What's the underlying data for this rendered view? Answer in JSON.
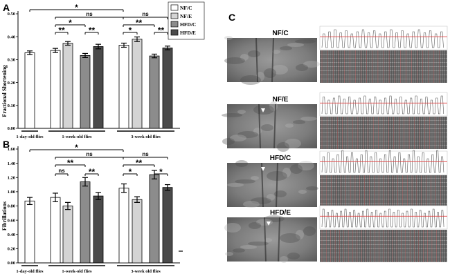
{
  "panels": {
    "a_letter": "A",
    "b_letter": "B",
    "c_letter": "C"
  },
  "legend": {
    "items": [
      {
        "label": "NF/C",
        "color": "#ffffff"
      },
      {
        "label": "NF/E",
        "color": "#d4d4d4"
      },
      {
        "label": "HFD/C",
        "color": "#8c8c8c"
      },
      {
        "label": "HFD/E",
        "color": "#4a4a4a"
      }
    ]
  },
  "groups": [
    "1-day-old flies",
    "1-week-old flies",
    "3-week old flies"
  ],
  "chart_data": [
    {
      "type": "bar",
      "panel": "A",
      "ylabel": "Fractional Shortening",
      "ylim": [
        0,
        0.5
      ],
      "yticks": [
        "0.00",
        "0.10",
        "0.20",
        "0.30",
        "0.40",
        "0.50"
      ],
      "categories": [
        "1-day-old flies",
        "1-week-old flies",
        "3-week old flies"
      ],
      "series": [
        {
          "name": "NF/C",
          "values": [
            0.33,
            0.34,
            0.363
          ],
          "errors": [
            0.008,
            0.009,
            0.009
          ]
        },
        {
          "name": "NF/E",
          "values": [
            null,
            0.371,
            0.389
          ],
          "errors": [
            null,
            0.008,
            0.01
          ]
        },
        {
          "name": "HFD/C",
          "values": [
            null,
            0.318,
            0.316
          ],
          "errors": [
            null,
            0.009,
            0.008
          ]
        },
        {
          "name": "HFD/E",
          "values": [
            null,
            0.357,
            0.351
          ],
          "errors": [
            null,
            0.01,
            0.008
          ]
        }
      ],
      "annotations": [
        "*",
        "ns",
        "**",
        "*",
        "**",
        "ns",
        "*",
        "**",
        "**"
      ]
    },
    {
      "type": "bar",
      "panel": "B",
      "ylabel": "Fibrillations",
      "ylim": [
        0,
        1.6
      ],
      "yticks": [
        "0.00",
        "0.20",
        "0.40",
        "0.60",
        "0.80",
        "1.00",
        "1.20",
        "1.40",
        "1.60"
      ],
      "categories": [
        "1-day-old flies",
        "1-week-old flies",
        "3-week old flies"
      ],
      "series": [
        {
          "name": "NF/C",
          "values": [
            0.87,
            0.92,
            1.05
          ],
          "errors": [
            0.05,
            0.06,
            0.06
          ]
        },
        {
          "name": "NF/E",
          "values": [
            null,
            0.8,
            0.89
          ],
          "errors": [
            null,
            0.05,
            0.04
          ]
        },
        {
          "name": "HFD/C",
          "values": [
            null,
            1.14,
            1.24
          ],
          "errors": [
            null,
            0.06,
            0.06
          ]
        },
        {
          "name": "HFD/E",
          "values": [
            null,
            0.94,
            1.06
          ],
          "errors": [
            null,
            0.05,
            0.04
          ]
        }
      ],
      "annotations": [
        "*",
        "ns",
        "ns",
        "**",
        "**",
        "ns",
        "**",
        "*",
        "*"
      ]
    }
  ],
  "panel_c": {
    "conditions": [
      "NF/C",
      "NF/E",
      "HFD/C",
      "HFD/E"
    ]
  }
}
